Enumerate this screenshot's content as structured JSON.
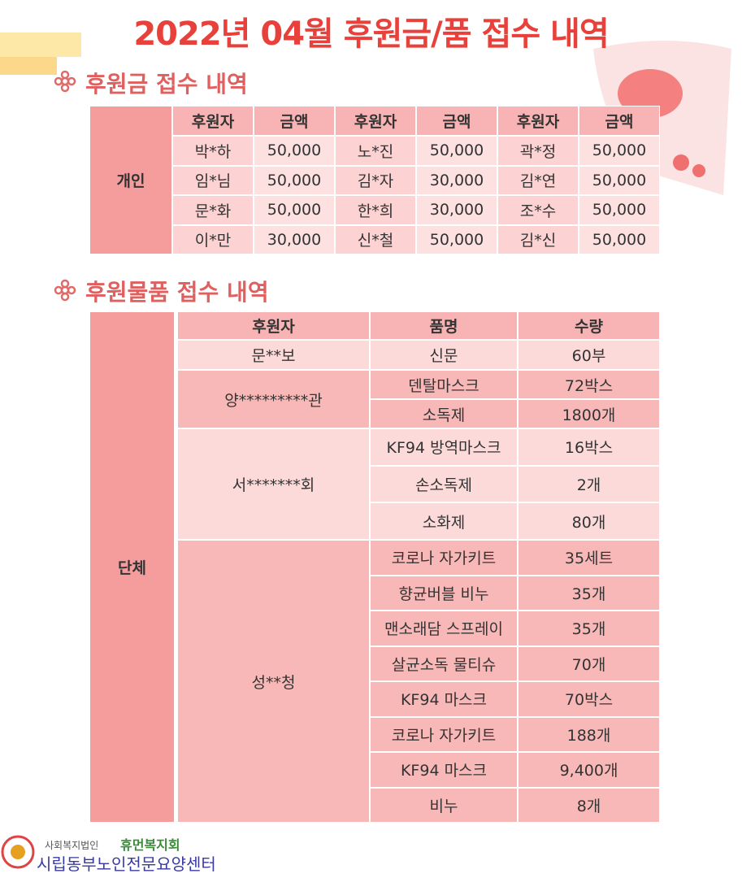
{
  "title": "2022년 04월 후원금/품 접수 내역",
  "cash": {
    "heading": "후원금 접수 내역",
    "group": "개인",
    "headers": [
      "후원자",
      "금액",
      "후원자",
      "금액",
      "후원자",
      "금액"
    ],
    "rows": [
      [
        "박*하",
        "50,000",
        "노*진",
        "50,000",
        "곽*정",
        "50,000"
      ],
      [
        "임*님",
        "50,000",
        "김*자",
        "30,000",
        "김*연",
        "50,000"
      ],
      [
        "문*화",
        "50,000",
        "한*희",
        "30,000",
        "조*수",
        "50,000"
      ],
      [
        "이*만",
        "30,000",
        "신*철",
        "50,000",
        "김*신",
        "50,000"
      ]
    ]
  },
  "goods": {
    "heading": "후원물품 접수 내역",
    "group": "단체",
    "headers": [
      "후원자",
      "품명",
      "수량"
    ],
    "donors": [
      {
        "name": "문**보",
        "items": [
          {
            "item": "신문",
            "qty": "60부"
          }
        ]
      },
      {
        "name": "양*********관",
        "items": [
          {
            "item": "덴탈마스크",
            "qty": "72박스"
          },
          {
            "item": "소독제",
            "qty": "1800개"
          }
        ]
      },
      {
        "name": "서*******회",
        "items": [
          {
            "item": "KF94 방역마스크",
            "qty": "16박스"
          },
          {
            "item": "손소독제",
            "qty": "2개"
          },
          {
            "item": "소화제",
            "qty": "80개"
          }
        ]
      },
      {
        "name": "성**청",
        "items": [
          {
            "item": "코로나 자가키트",
            "qty": "35세트"
          },
          {
            "item": "향균버블 비누",
            "qty": "35개"
          },
          {
            "item": "맨소래담 스프레이",
            "qty": "35개"
          },
          {
            "item": "살균소독 물티슈",
            "qty": "70개"
          },
          {
            "item": "KF94 마스크",
            "qty": "70박스"
          },
          {
            "item": "코로나 자가키트",
            "qty": "188개"
          },
          {
            "item": "KF94 마스크",
            "qty": "9,400개"
          },
          {
            "item": "비누",
            "qty": "8개"
          }
        ]
      }
    ]
  },
  "footer": {
    "org_prefix": "사회복지법인",
    "org": "휴먼복지회",
    "center": "시립동부노인전문요양센터"
  }
}
